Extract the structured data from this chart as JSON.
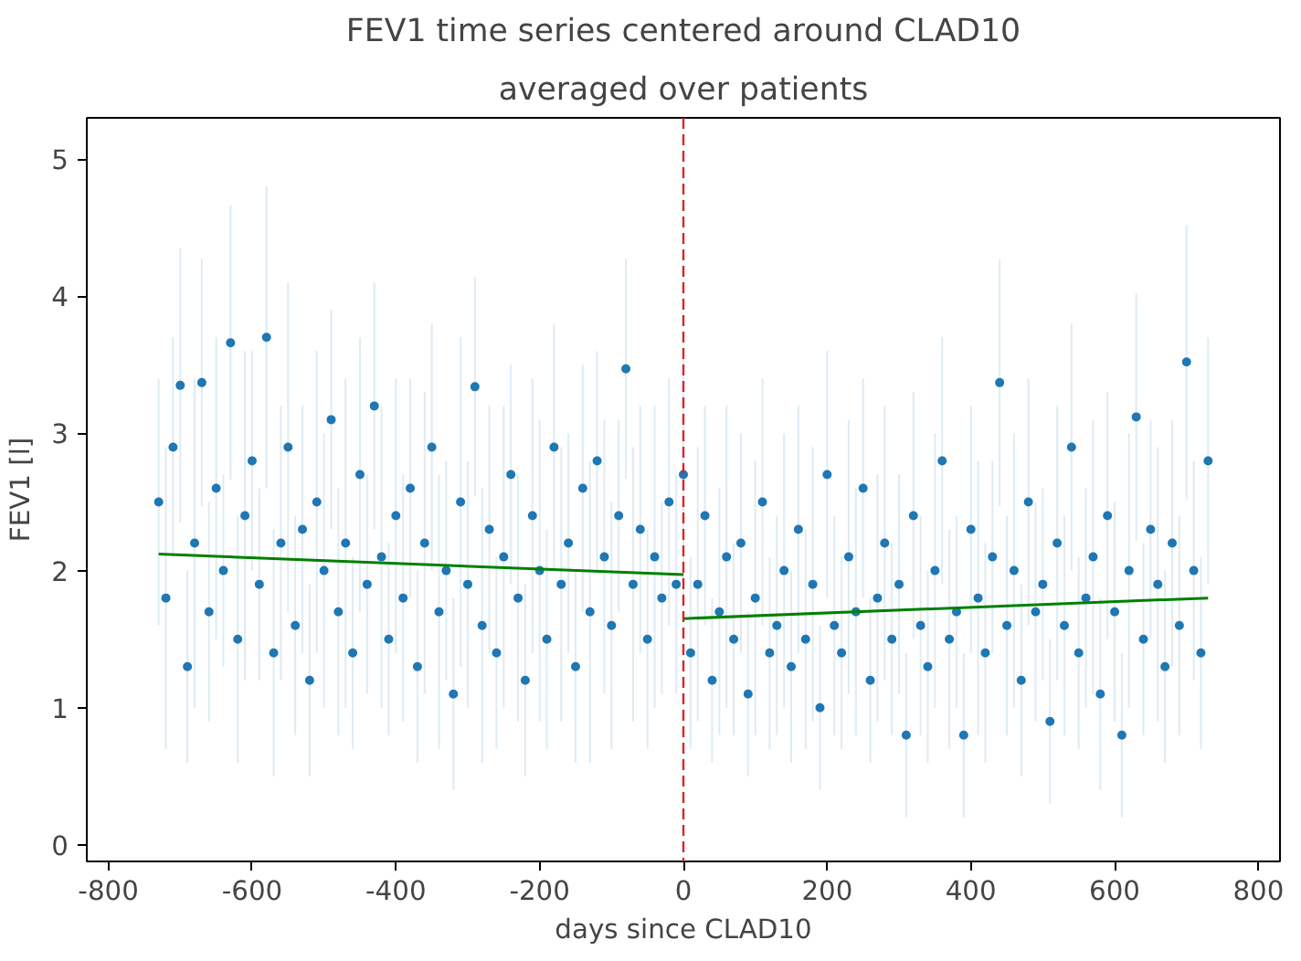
{
  "chart_data": {
    "type": "scatter",
    "title": "FEV1 time series centered around CLAD10",
    "subtitle": "averaged over patients",
    "xlabel": "days since CLAD10",
    "ylabel": "FEV1 [l]",
    "xlim": [
      -830,
      830
    ],
    "ylim": [
      -0.12,
      5.3
    ],
    "xticks": [
      -800,
      -600,
      -400,
      -200,
      0,
      200,
      400,
      600,
      800
    ],
    "yticks": [
      0,
      1,
      2,
      3,
      4,
      5
    ],
    "grid": false,
    "series": [
      {
        "marker": "circle",
        "color": "#1f77b4",
        "x": [
          -730,
          -720,
          -710,
          -700,
          -690,
          -680,
          -670,
          -660,
          -650,
          -640,
          -630,
          -620,
          -610,
          -600,
          -590,
          -580,
          -570,
          -560,
          -550,
          -540,
          -530,
          -520,
          -510,
          -500,
          -490,
          -480,
          -470,
          -460,
          -450,
          -440,
          -430,
          -420,
          -410,
          -400,
          -390,
          -380,
          -370,
          -360,
          -350,
          -340,
          -330,
          -320,
          -310,
          -300,
          -290,
          -280,
          -270,
          -260,
          -250,
          -240,
          -230,
          -220,
          -210,
          -200,
          -190,
          -180,
          -170,
          -160,
          -150,
          -140,
          -130,
          -120,
          -110,
          -100,
          -90,
          -80,
          -70,
          -60,
          -50,
          -40,
          -30,
          -20,
          -10,
          0,
          10,
          20,
          30,
          40,
          50,
          60,
          70,
          80,
          90,
          100,
          110,
          120,
          130,
          140,
          150,
          160,
          170,
          180,
          190,
          200,
          210,
          220,
          230,
          240,
          250,
          260,
          270,
          280,
          290,
          300,
          310,
          320,
          330,
          340,
          350,
          360,
          370,
          380,
          390,
          400,
          410,
          420,
          430,
          440,
          450,
          460,
          470,
          480,
          490,
          500,
          510,
          520,
          530,
          540,
          550,
          560,
          570,
          580,
          590,
          600,
          610,
          620,
          630,
          640,
          650,
          660,
          670,
          680,
          690,
          700,
          710,
          720,
          730
        ],
        "values": [
          2.5,
          1.8,
          2.9,
          3.35,
          1.3,
          2.2,
          3.37,
          1.7,
          2.6,
          2.0,
          3.66,
          1.5,
          2.4,
          2.8,
          1.9,
          3.7,
          1.4,
          2.2,
          2.9,
          1.6,
          2.3,
          1.2,
          2.5,
          2.0,
          3.1,
          1.7,
          2.2,
          1.4,
          2.7,
          1.9,
          3.2,
          2.1,
          1.5,
          2.4,
          1.8,
          2.6,
          1.3,
          2.2,
          2.9,
          1.7,
          2.0,
          1.1,
          2.5,
          1.9,
          3.34,
          1.6,
          2.3,
          1.4,
          2.1,
          2.7,
          1.8,
          1.2,
          2.4,
          2.0,
          1.5,
          2.9,
          1.9,
          2.2,
          1.3,
          2.6,
          1.7,
          2.8,
          2.1,
          1.6,
          2.4,
          3.47,
          1.9,
          2.3,
          1.5,
          2.1,
          1.8,
          2.5,
          1.9,
          2.7,
          1.4,
          1.9,
          2.4,
          1.2,
          1.7,
          2.1,
          1.5,
          2.2,
          1.1,
          1.8,
          2.5,
          1.4,
          1.6,
          2.0,
          1.3,
          2.3,
          1.5,
          1.9,
          1.0,
          2.7,
          1.6,
          1.4,
          2.1,
          1.7,
          2.6,
          1.2,
          1.8,
          2.2,
          1.5,
          1.9,
          0.8,
          2.4,
          1.6,
          1.3,
          2.0,
          2.8,
          1.5,
          1.7,
          0.8,
          2.3,
          1.8,
          1.4,
          2.1,
          3.37,
          1.6,
          2.0,
          1.2,
          2.5,
          1.7,
          1.9,
          0.9,
          2.2,
          1.6,
          2.9,
          1.4,
          1.8,
          2.1,
          1.1,
          2.4,
          1.7,
          0.8,
          2.0,
          3.12,
          1.5,
          2.3,
          1.9,
          1.3,
          2.2,
          1.6,
          3.52,
          2.0,
          1.4,
          2.8
        ],
        "errors": [
          0.9,
          1.1,
          0.8,
          1.0,
          0.7,
          1.2,
          0.9,
          0.8,
          1.1,
          0.7,
          1.0,
          0.9,
          1.2,
          0.8,
          0.7,
          1.1,
          0.9,
          1.0,
          1.2,
          0.8,
          0.9,
          0.7,
          1.1,
          1.0,
          0.8,
          0.9,
          1.2,
          0.7,
          1.0,
          0.8,
          0.9,
          1.1,
          0.7,
          1.0,
          0.9,
          0.8,
          0.7,
          1.1,
          0.9,
          1.0,
          0.8,
          0.7,
          1.2,
          0.9,
          0.8,
          1.0,
          0.9,
          0.7,
          1.1,
          0.8,
          0.9,
          0.7,
          1.0,
          1.1,
          0.8,
          0.9,
          1.0,
          0.8,
          0.7,
          0.9,
          1.1,
          0.8,
          1.0,
          0.9,
          0.7,
          0.8,
          1.0,
          0.9,
          0.8,
          1.1,
          0.7,
          0.9,
          0.8,
          0.9,
          0.7,
          1.0,
          0.8,
          0.6,
          0.9,
          1.1,
          0.7,
          0.8,
          0.6,
          1.0,
          0.9,
          0.7,
          0.8,
          1.0,
          0.7,
          0.9,
          0.8,
          1.0,
          0.6,
          0.9,
          0.8,
          0.7,
          1.0,
          0.9,
          0.8,
          0.6,
          0.9,
          1.0,
          0.7,
          0.8,
          0.6,
          0.9,
          0.8,
          0.7,
          1.0,
          0.9,
          0.8,
          0.7,
          0.6,
          0.9,
          1.0,
          0.8,
          0.7,
          0.9,
          0.8,
          1.0,
          0.7,
          0.9,
          0.8,
          0.7,
          0.6,
          1.0,
          0.8,
          0.9,
          0.7,
          0.8,
          1.0,
          0.7,
          0.9,
          0.8,
          0.6,
          1.0,
          0.9,
          0.7,
          0.8,
          1.0,
          0.7,
          0.9,
          0.8,
          1.0,
          0.8,
          0.7,
          0.9
        ]
      },
      {
        "type": "line",
        "color": "#008000",
        "x": [
          -730,
          0
        ],
        "values": [
          2.12,
          1.97
        ]
      },
      {
        "type": "line",
        "color": "#008000",
        "x": [
          0,
          730
        ],
        "values": [
          1.65,
          1.8
        ]
      }
    ],
    "ref_lines": [
      {
        "axis": "x",
        "value": 0,
        "color": "#d62728",
        "line_style": "dashed"
      }
    ]
  }
}
